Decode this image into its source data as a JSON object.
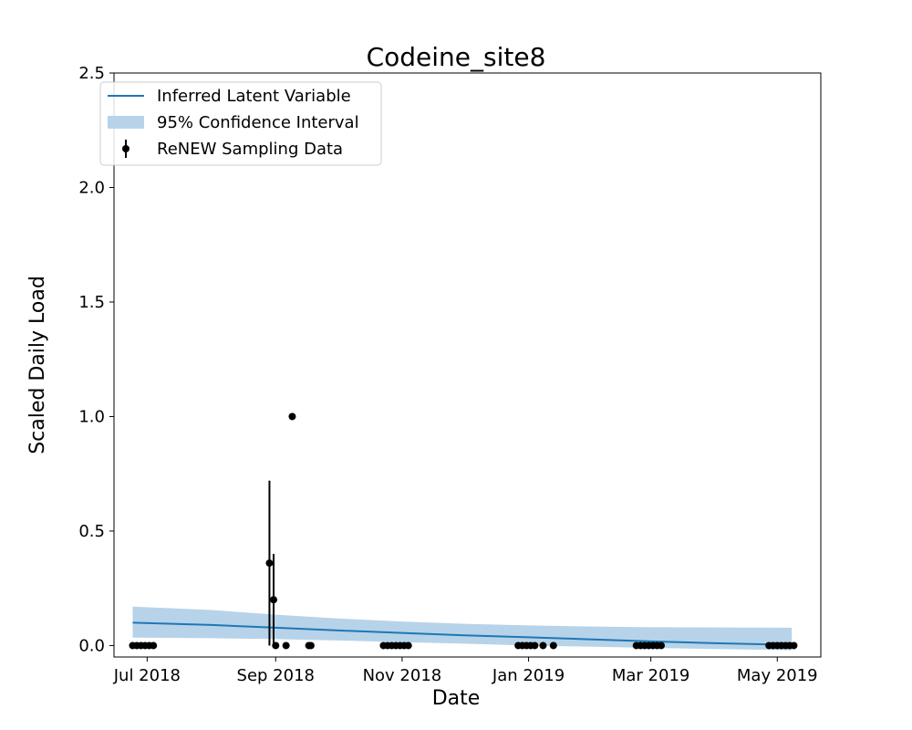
{
  "chart_data": {
    "type": "line",
    "title": "Codeine_site8",
    "xlabel": "Date",
    "ylabel": "Scaled Daily Load",
    "xlim": [
      "2018-06-15",
      "2019-05-22"
    ],
    "ylim": [
      -0.05,
      2.5
    ],
    "x_ticks": [
      {
        "date": "2018-07-01",
        "label": "Jul 2018"
      },
      {
        "date": "2018-09-01",
        "label": "Sep 2018"
      },
      {
        "date": "2018-11-01",
        "label": "Nov 2018"
      },
      {
        "date": "2019-01-01",
        "label": "Jan 2019"
      },
      {
        "date": "2019-03-01",
        "label": "Mar 2019"
      },
      {
        "date": "2019-05-01",
        "label": "May 2019"
      }
    ],
    "y_ticks": [
      0.0,
      0.5,
      1.0,
      1.5,
      2.0,
      2.5
    ],
    "y_tick_labels": [
      "0.0",
      "0.5",
      "1.0",
      "1.5",
      "2.0",
      "2.5"
    ],
    "grid": false,
    "legend_position": "top-left",
    "legend": [
      {
        "label": "Inferred Latent Variable",
        "kind": "line"
      },
      {
        "label": "95% Confidence Interval",
        "kind": "band"
      },
      {
        "label": "ReNEW Sampling Data",
        "kind": "errorbar-point"
      }
    ],
    "colors": {
      "line": "#1f77b4",
      "band": "#b7d3e9",
      "points": "#000000"
    },
    "series": [
      {
        "name": "Inferred Latent Variable",
        "kind": "line",
        "points": [
          {
            "x": "2018-06-24",
            "y": 0.1
          },
          {
            "x": "2018-08-01",
            "y": 0.09
          },
          {
            "x": "2018-09-01",
            "y": 0.078
          },
          {
            "x": "2018-10-01",
            "y": 0.066
          },
          {
            "x": "2018-11-01",
            "y": 0.055
          },
          {
            "x": "2018-12-01",
            "y": 0.045
          },
          {
            "x": "2019-01-01",
            "y": 0.036
          },
          {
            "x": "2019-02-01",
            "y": 0.027
          },
          {
            "x": "2019-03-01",
            "y": 0.018
          },
          {
            "x": "2019-04-01",
            "y": 0.01
          },
          {
            "x": "2019-05-08",
            "y": 0.003
          }
        ]
      },
      {
        "name": "95% Confidence Interval",
        "kind": "band",
        "points": [
          {
            "x": "2018-06-24",
            "lower": 0.035,
            "upper": 0.17
          },
          {
            "x": "2018-08-01",
            "lower": 0.032,
            "upper": 0.155
          },
          {
            "x": "2018-09-01",
            "lower": 0.028,
            "upper": 0.135
          },
          {
            "x": "2018-10-01",
            "lower": 0.022,
            "upper": 0.118
          },
          {
            "x": "2018-11-01",
            "lower": 0.015,
            "upper": 0.105
          },
          {
            "x": "2018-12-01",
            "lower": 0.008,
            "upper": 0.095
          },
          {
            "x": "2019-01-01",
            "lower": 0.0,
            "upper": 0.088
          },
          {
            "x": "2019-02-01",
            "lower": -0.005,
            "upper": 0.083
          },
          {
            "x": "2019-03-01",
            "lower": -0.01,
            "upper": 0.08
          },
          {
            "x": "2019-04-01",
            "lower": -0.015,
            "upper": 0.079
          },
          {
            "x": "2019-05-08",
            "lower": -0.02,
            "upper": 0.078
          }
        ]
      },
      {
        "name": "ReNEW Sampling Data",
        "kind": "errorbar-points",
        "points": [
          {
            "x": "2018-06-24",
            "y": 0.0
          },
          {
            "x": "2018-06-26",
            "y": 0.0
          },
          {
            "x": "2018-06-28",
            "y": 0.0
          },
          {
            "x": "2018-06-30",
            "y": 0.0
          },
          {
            "x": "2018-07-02",
            "y": 0.0
          },
          {
            "x": "2018-07-04",
            "y": 0.0
          },
          {
            "x": "2018-08-29",
            "y": 0.36,
            "err_low": 0.36,
            "err_high": 0.36
          },
          {
            "x": "2018-08-31",
            "y": 0.2,
            "err_low": 0.2,
            "err_high": 0.2
          },
          {
            "x": "2018-09-01",
            "y": 0.0
          },
          {
            "x": "2018-09-06",
            "y": 0.0
          },
          {
            "x": "2018-09-09",
            "y": 1.0
          },
          {
            "x": "2018-09-17",
            "y": 0.0
          },
          {
            "x": "2018-09-18",
            "y": 0.0
          },
          {
            "x": "2018-10-23",
            "y": 0.0
          },
          {
            "x": "2018-10-25",
            "y": 0.0
          },
          {
            "x": "2018-10-27",
            "y": 0.0
          },
          {
            "x": "2018-10-29",
            "y": 0.0
          },
          {
            "x": "2018-10-31",
            "y": 0.0
          },
          {
            "x": "2018-11-02",
            "y": 0.0
          },
          {
            "x": "2018-11-04",
            "y": 0.0
          },
          {
            "x": "2018-12-27",
            "y": 0.0
          },
          {
            "x": "2018-12-29",
            "y": 0.0
          },
          {
            "x": "2018-12-31",
            "y": 0.0
          },
          {
            "x": "2019-01-02",
            "y": 0.0
          },
          {
            "x": "2019-01-04",
            "y": 0.0
          },
          {
            "x": "2019-01-08",
            "y": 0.0
          },
          {
            "x": "2019-01-13",
            "y": 0.0
          },
          {
            "x": "2019-02-22",
            "y": 0.0
          },
          {
            "x": "2019-02-24",
            "y": 0.0
          },
          {
            "x": "2019-02-26",
            "y": 0.0
          },
          {
            "x": "2019-02-28",
            "y": 0.0
          },
          {
            "x": "2019-03-02",
            "y": 0.0
          },
          {
            "x": "2019-03-04",
            "y": 0.0
          },
          {
            "x": "2019-03-06",
            "y": 0.0
          },
          {
            "x": "2019-04-27",
            "y": 0.0
          },
          {
            "x": "2019-04-29",
            "y": 0.0
          },
          {
            "x": "2019-05-01",
            "y": 0.0
          },
          {
            "x": "2019-05-03",
            "y": 0.0
          },
          {
            "x": "2019-05-05",
            "y": 0.0
          },
          {
            "x": "2019-05-07",
            "y": 0.0
          },
          {
            "x": "2019-05-09",
            "y": 0.0
          }
        ]
      }
    ]
  }
}
